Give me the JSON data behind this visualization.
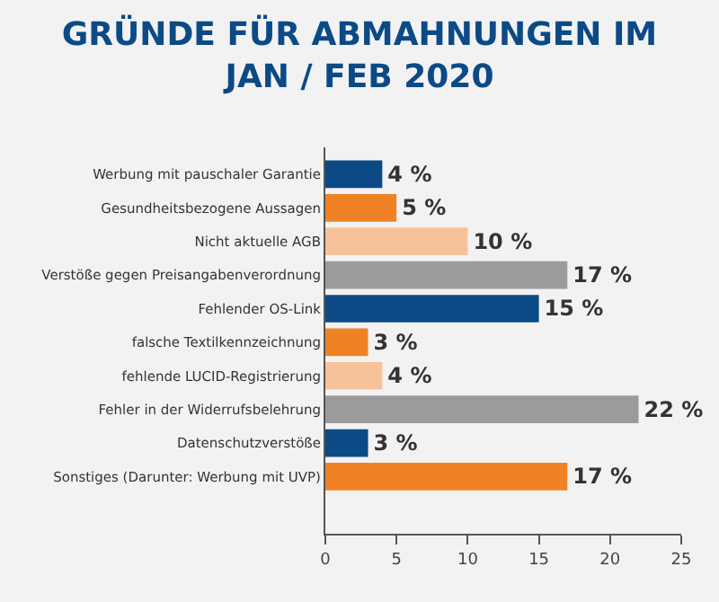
{
  "chart_data": {
    "type": "bar",
    "orientation": "horizontal",
    "title": "GRÜNDE FÜR ABMAHNUNGEN IM\nJAN / FEB 2020",
    "categories": [
      "Werbung mit pauschaler Garantie",
      "Gesundheitsbezogene Aussagen",
      "Nicht aktuelle AGB",
      "Verstöße gegen Preisangabenverordnung",
      "Fehlender OS-Link",
      "falsche Textilkennzeichnung",
      "fehlende LUCID-Registrierung",
      "Fehler in der Widerrufsbelehrung",
      "Datenschutzverstöße",
      "Sonstiges (Darunter: Werbung mit UVP)"
    ],
    "values": [
      4,
      5,
      10,
      17,
      15,
      3,
      4,
      22,
      3,
      17
    ],
    "value_labels": [
      "4 %",
      "5 %",
      "10 %",
      "17 %",
      "15 %",
      "3 %",
      "4 %",
      "22 %",
      "3 %",
      "17 %"
    ],
    "colors": [
      "#0b4a85",
      "#f08226",
      "#f7c29a",
      "#9b9b9b",
      "#0b4a85",
      "#f08226",
      "#f7c29a",
      "#9b9b9b",
      "#0b4a85",
      "#f08226"
    ],
    "xlim": [
      0,
      25
    ],
    "xticks": [
      0,
      5,
      10,
      15,
      20,
      25
    ],
    "grid": false
  }
}
